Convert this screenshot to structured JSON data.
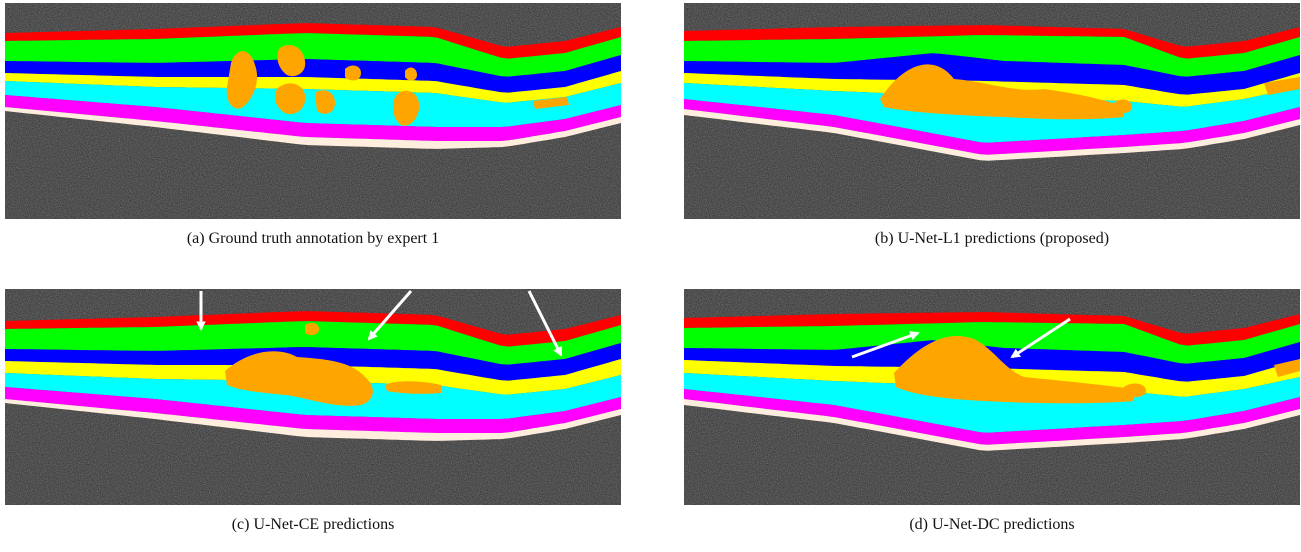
{
  "figure": {
    "panels": [
      {
        "id": "a",
        "caption": "(a) Ground truth annotation by expert 1",
        "variant": "gt",
        "arrows": []
      },
      {
        "id": "b",
        "caption": "(b) U-Net-L1 predictions (proposed)",
        "variant": "l1",
        "arrows": []
      },
      {
        "id": "c",
        "caption": "(c) U-Net-CE predictions",
        "variant": "ce",
        "arrows": [
          "arrow-1",
          "arrow-2",
          "arrow-3"
        ]
      },
      {
        "id": "d",
        "caption": "(d) U-Net-DC predictions",
        "variant": "dc",
        "arrows": [
          "arrow-1",
          "arrow-2"
        ]
      }
    ],
    "layer_colors": {
      "background": "#2b2b2b",
      "layer_1": "#ff0000",
      "layer_2": "#00ff00",
      "layer_3": "#0000ff",
      "layer_4": "#ffff00",
      "layer_5": "#00ffff",
      "layer_6": "#ff00ff",
      "layer_7": "#ffeedd",
      "fluid": "#ffa500"
    }
  }
}
